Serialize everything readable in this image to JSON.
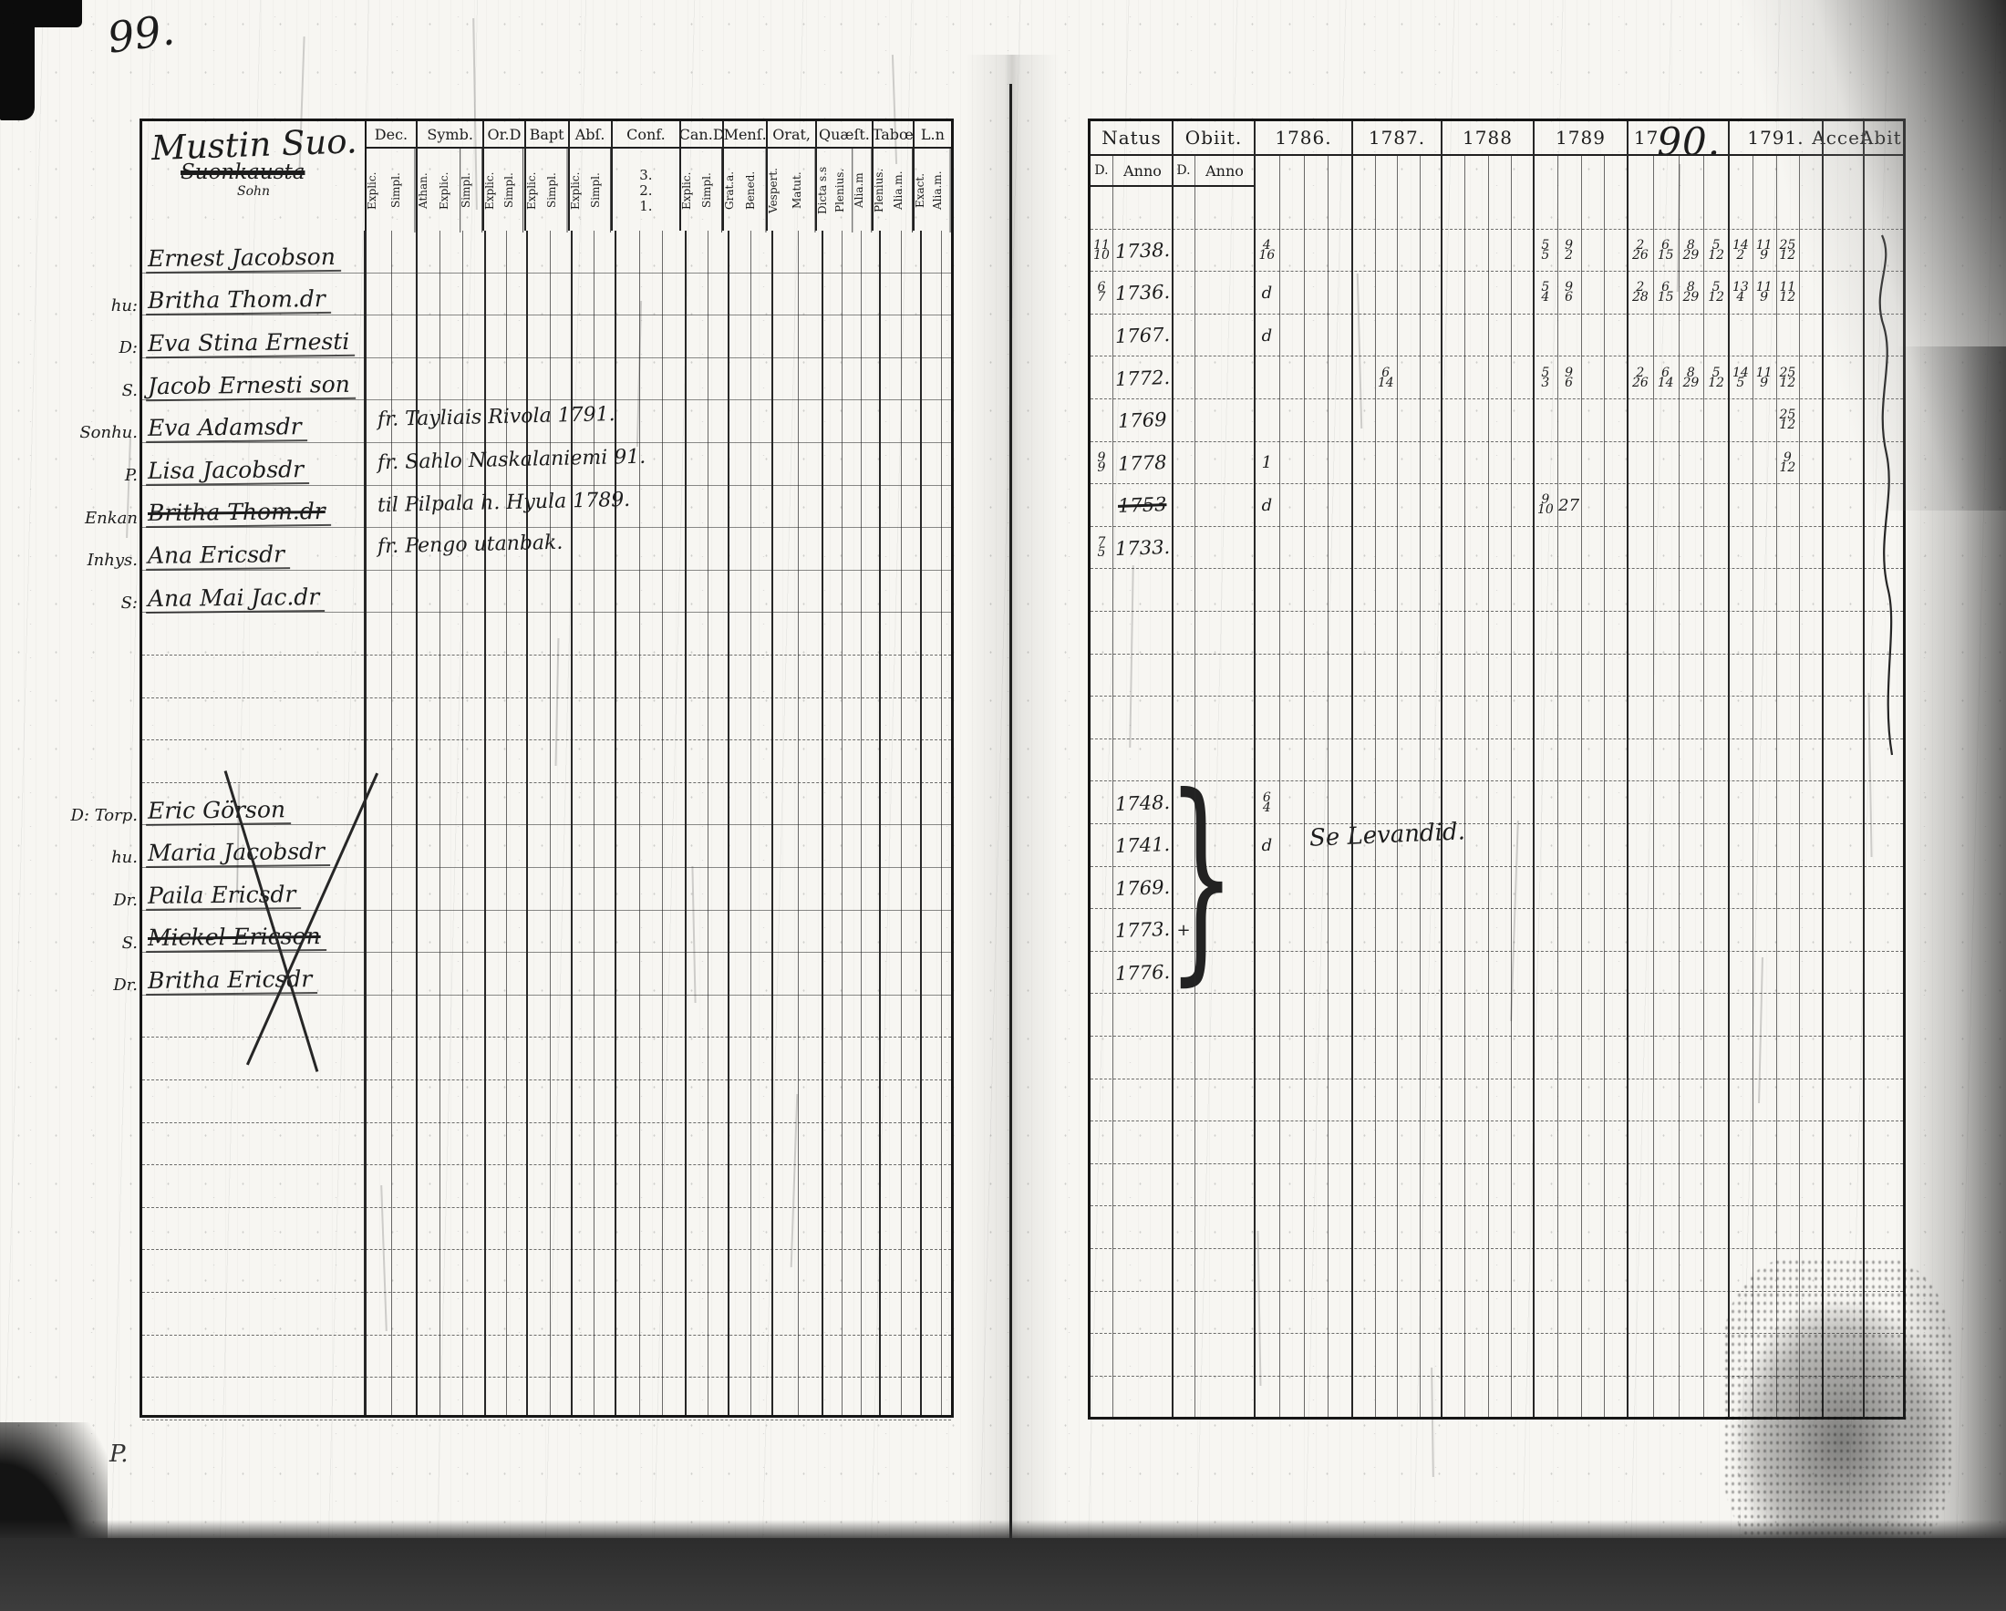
{
  "page": {
    "number": "99."
  },
  "left_table": {
    "title": "Mustin Suo.",
    "title_sub": "Suonkausta",
    "title_note": "Sohn",
    "groups": [
      {
        "label": "Dec.",
        "subs": [
          "Explic.",
          "Simpl."
        ]
      },
      {
        "label": "Symb.",
        "subs": [
          "Athan.",
          "Explic.",
          "Simpl."
        ]
      },
      {
        "label": "Or.D",
        "subs": [
          "Explic.",
          "Simpl."
        ]
      },
      {
        "label": "Bapt",
        "subs": [
          "Explic.",
          "Simpl."
        ]
      },
      {
        "label": "Abſ.",
        "subs": [
          "Explic.",
          "Simpl."
        ]
      },
      {
        "label": "Conf.",
        "subs": [
          "3.",
          "2.",
          "1."
        ],
        "nums": true
      },
      {
        "label": "Can.D",
        "subs": [
          "Explic.",
          "Simpl."
        ]
      },
      {
        "label": "Menſ.",
        "subs": [
          "Grat.a.",
          "Bened."
        ]
      },
      {
        "label": "Orat,",
        "subs": [
          "Vespert.",
          "Matut."
        ]
      },
      {
        "label": "Quæſt.",
        "subs": [
          "Dicta s.s",
          "Plenius.",
          "Alia.m"
        ]
      },
      {
        "label": "Tabœ",
        "subs": [
          "Plenius.",
          "Alia.m."
        ]
      },
      {
        "label": "L.n",
        "subs": [
          "Exact.",
          "Alia.m."
        ]
      }
    ],
    "rows": [
      {
        "prefix": "",
        "name": "Ernest Jacobson"
      },
      {
        "prefix": "hu:",
        "name": "Britha Thom.dr"
      },
      {
        "prefix": "D:",
        "name": "Eva Stina Ernesti"
      },
      {
        "prefix": "S.",
        "name": "Jacob Ernesti son"
      },
      {
        "prefix": "Sonhu.",
        "name": "Eva Adamsdr",
        "note": "fr. Tayliais Rivola 1791."
      },
      {
        "prefix": "P.",
        "name": "Lisa Jacobsdr",
        "note": "fr. Sahlo Naskalaniemi 91."
      },
      {
        "prefix": "Enkan",
        "name": "Britha Thom.dr",
        "struck": true,
        "note": "til Pilpala h. Hyula 1789."
      },
      {
        "prefix": "Inhys.",
        "name": "Ana Ericsdr",
        "note": "fr. Pengo utanbak."
      },
      {
        "prefix": "S:",
        "name": "Ana Mai Jac.dr"
      },
      {},
      {},
      {},
      {},
      {
        "prefix": "D: Torp.",
        "name": "Eric Görson"
      },
      {
        "prefix": "hu.",
        "name": "Maria Jacobsdr"
      },
      {
        "prefix": "Dr.",
        "name": "Paila Ericsdr"
      },
      {
        "prefix": "S.",
        "name": "Mickel Ericson",
        "struck": true
      },
      {
        "prefix": "Dr.",
        "name": "Britha Ericsdr"
      },
      {},
      {},
      {},
      {},
      {},
      {},
      {},
      {},
      {},
      {}
    ]
  },
  "right_table": {
    "columns": [
      {
        "label": "Natus",
        "subs": [
          "D.",
          "Anno"
        ]
      },
      {
        "label": "Obiit.",
        "subs": [
          "D.",
          "Anno"
        ]
      },
      {
        "label": "1786.",
        "year": "1786"
      },
      {
        "label": "1787.",
        "year": "1787"
      },
      {
        "label": "1788",
        "year": "1788"
      },
      {
        "label": "1789",
        "year": "1789"
      },
      {
        "label": "17",
        "big": "90.",
        "year": "1790"
      },
      {
        "label": "1791.",
        "year": "1791"
      },
      {
        "label": "Acceſ."
      },
      {
        "label": "Abit."
      }
    ],
    "rows": [
      {},
      {
        "nd": "11/10",
        "na": "1738.",
        "m": {
          "1786": [
            "4/16"
          ],
          "1789": [
            "5/5",
            "9/2"
          ],
          "1790": [
            "2/26",
            "6/15",
            "8/29",
            "5/12"
          ],
          "1791": [
            "14/2",
            "11/9",
            "25/12"
          ]
        }
      },
      {
        "nd": "6/7",
        "na": "1736.",
        "m": {
          "1786": [
            "d"
          ],
          "1789": [
            "5/4",
            "9/6"
          ],
          "1790": [
            "2/28",
            "6/15",
            "8/29",
            "5/12"
          ],
          "1791": [
            "13/4",
            "11/9",
            "11/12"
          ]
        }
      },
      {
        "na": "1767.",
        "m": {
          "1786": [
            "d"
          ]
        }
      },
      {
        "na": "1772.",
        "m": {
          "1787": [
            "",
            "6/14"
          ],
          "1789": [
            "5/3",
            "9/6"
          ],
          "1790": [
            "2/26",
            "6/14",
            "8/29",
            "5/12"
          ],
          "1791": [
            "14/5",
            "11/9",
            "25/12"
          ]
        }
      },
      {
        "na": "1769",
        "m": {
          "1791": [
            "",
            "",
            "25/12"
          ]
        }
      },
      {
        "nd": "9/9",
        "na": "1778",
        "m": {
          "1786": [
            "1"
          ],
          "1791": [
            "",
            "",
            "9/12"
          ]
        }
      },
      {
        "na": "1753",
        "struck": true,
        "m": {
          "1786": [
            "d"
          ],
          "1789": [
            "9/10",
            "27"
          ]
        }
      },
      {
        "nd": "7/5",
        "na": "1733."
      },
      {},
      {},
      {},
      {},
      {},
      {
        "na": "1748.",
        "m": {
          "1786": [
            "6/4"
          ]
        }
      },
      {
        "na": "1741.",
        "m": {
          "1786": [
            "d"
          ]
        }
      },
      {
        "na": "1769."
      },
      {
        "na": "1773.",
        "od": "+"
      },
      {
        "na": "1776."
      },
      {},
      {},
      {},
      {},
      {},
      {},
      {},
      {},
      {},
      {}
    ],
    "brace_note": "Se Levandid."
  }
}
